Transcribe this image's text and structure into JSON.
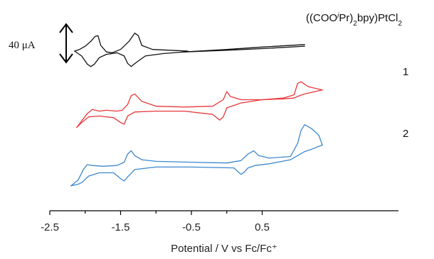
{
  "chart_data": {
    "type": "line",
    "title": "",
    "xlabel": "Potential  / V vs Fc/Fc⁺",
    "ylabel": "",
    "xlim": [
      -2.5,
      1.5
    ],
    "x_ticks": [
      -2.5,
      -1.5,
      -0.5,
      0.5
    ],
    "x_tick_labels": [
      "-2.5",
      "-1.5",
      "-0.5",
      "0.5"
    ],
    "scale_bar": {
      "label": "40 μA",
      "value_uA": 40
    },
    "series": [
      {
        "name": "((COOiPr)2bpy)PtCl2",
        "color": "#111111",
        "segments": [
          {
            "x": [
              -0.55,
              -1.05,
              -1.2,
              -1.25,
              -1.3,
              -1.38,
              -1.5,
              -1.62,
              -1.7,
              -1.78,
              -1.82,
              -1.86,
              -1.92,
              -2.0,
              -2.08,
              -2.15
            ],
            "y": [
              0.0,
              0.1,
              0.35,
              0.95,
              1.1,
              0.6,
              0.1,
              -0.1,
              -0.05,
              0.35,
              0.95,
              0.9,
              0.6,
              0.3,
              0.1,
              0.0
            ]
          },
          {
            "x": [
              -2.15,
              -2.05,
              -1.97,
              -1.92,
              -1.87,
              -1.8,
              -1.7,
              -1.55,
              -1.45,
              -1.4,
              -1.35,
              -1.28,
              -1.15,
              -0.9,
              -0.6,
              0.0,
              0.5,
              1.1
            ],
            "y": [
              0.0,
              -0.3,
              -0.8,
              -0.95,
              -0.8,
              -0.4,
              -0.2,
              -0.1,
              -0.3,
              -0.75,
              -0.95,
              -0.7,
              -0.3,
              -0.15,
              -0.05,
              0.05,
              0.15,
              0.3
            ]
          },
          {
            "x": [
              -0.6,
              0.0,
              0.5,
              1.1
            ],
            "y": [
              -0.05,
              0.1,
              0.25,
              0.4
            ]
          }
        ]
      },
      {
        "name": "1",
        "color": "#e8373a",
        "segments": [
          {
            "x": [
              -2.12,
              -2.05,
              -1.97,
              -1.9,
              -1.8,
              -1.7,
              -1.55,
              -1.48,
              -1.4,
              -1.35,
              -1.3,
              -1.2,
              -1.0,
              -0.6,
              -0.2,
              -0.05,
              0.0,
              0.05,
              0.2,
              0.5,
              0.8,
              0.95,
              1.0,
              1.05,
              1.15,
              1.35
            ],
            "y": [
              -1.2,
              -0.8,
              -0.35,
              -0.1,
              -0.2,
              -0.15,
              -0.2,
              -0.15,
              0.2,
              0.75,
              0.85,
              0.4,
              0.1,
              0.05,
              0.1,
              0.5,
              1.0,
              0.7,
              0.5,
              0.5,
              0.6,
              0.8,
              1.5,
              1.6,
              1.3,
              1.1
            ]
          },
          {
            "x": [
              1.35,
              1.1,
              1.0,
              0.95,
              0.8,
              0.5,
              0.2,
              0.0,
              -0.05,
              -0.1,
              -0.2,
              -0.6,
              -1.0,
              -1.3,
              -1.4,
              -1.45,
              -1.5,
              -1.6,
              -1.8,
              -1.95,
              -2.05,
              -2.12
            ],
            "y": [
              1.1,
              0.85,
              0.7,
              0.6,
              0.55,
              0.5,
              0.3,
              0.0,
              -0.55,
              -0.75,
              -0.4,
              -0.2,
              -0.2,
              -0.25,
              -0.5,
              -1.0,
              -0.9,
              -0.6,
              -0.5,
              -0.55,
              -0.9,
              -1.2
            ]
          }
        ]
      },
      {
        "name": "2",
        "color": "#3b88cc",
        "segments": [
          {
            "x": [
              -2.2,
              -2.1,
              -2.02,
              -1.97,
              -1.9,
              -1.75,
              -1.55,
              -1.45,
              -1.4,
              -1.35,
              -1.3,
              -1.2,
              -1.0,
              -0.5,
              0.0,
              0.2,
              0.3,
              0.38,
              0.45,
              0.6,
              0.9,
              1.0,
              1.05,
              1.1,
              1.2,
              1.3,
              1.35
            ],
            "y": [
              -1.3,
              -0.95,
              -0.25,
              0.0,
              -0.05,
              -0.1,
              -0.05,
              0.15,
              0.65,
              0.85,
              0.55,
              0.3,
              0.2,
              0.15,
              0.1,
              0.25,
              0.65,
              0.85,
              0.55,
              0.4,
              0.5,
              1.3,
              2.1,
              2.45,
              2.2,
              1.8,
              1.2
            ]
          },
          {
            "x": [
              1.35,
              1.2,
              1.1,
              1.0,
              0.9,
              0.6,
              0.4,
              0.3,
              0.25,
              0.2,
              0.1,
              -0.5,
              -1.0,
              -1.3,
              -1.4,
              -1.45,
              -1.5,
              -1.6,
              -1.8,
              -1.95,
              -2.05,
              -2.1,
              -2.2
            ],
            "y": [
              1.2,
              0.95,
              0.8,
              0.55,
              0.3,
              0.05,
              -0.05,
              -0.2,
              -0.45,
              -0.6,
              -0.2,
              -0.15,
              -0.15,
              -0.3,
              -0.75,
              -1.0,
              -0.85,
              -0.5,
              -0.5,
              -0.7,
              -1.1,
              -1.2,
              -1.3
            ]
          }
        ]
      }
    ],
    "grid": false,
    "legend": "none"
  }
}
